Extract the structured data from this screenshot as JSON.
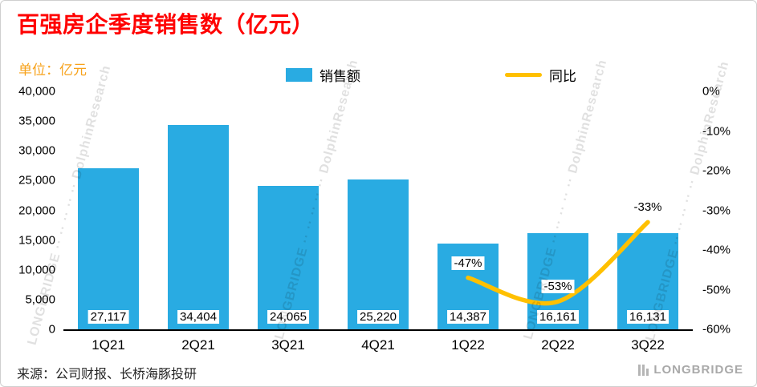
{
  "header": {
    "title": "百强房企季度销售数（亿元）",
    "unit": "单位：亿元"
  },
  "legend": {
    "sales": "销售额",
    "yoy": "同比"
  },
  "footer": {
    "source": "来源：公司财报、长桥海豚投研",
    "logo": "LONGBRIDGE"
  },
  "watermark": {
    "text": "LONGBRIDGE ·· ·· ·· ·· ·· DolphinResearch"
  },
  "colors": {
    "bar": "#29ABE2",
    "line": "#FFC000",
    "title": "#FF0000",
    "unit": "#F7A21B"
  },
  "chart_data": {
    "type": "bar",
    "title": "百强房企季度销售数（亿元）",
    "categories": [
      "1Q21",
      "2Q21",
      "3Q21",
      "4Q21",
      "1Q22",
      "2Q22",
      "3Q22"
    ],
    "series": [
      {
        "name": "销售额",
        "type": "bar",
        "axis": "left",
        "values": [
          27117,
          34404,
          24065,
          25220,
          14387,
          16161,
          16131
        ],
        "labels": [
          "27,117",
          "34,404",
          "24,065",
          "25,220",
          "14,387",
          "16,161",
          "16,131"
        ]
      },
      {
        "name": "同比",
        "type": "line",
        "axis": "right",
        "values": [
          null,
          null,
          null,
          null,
          -47,
          -53,
          -33
        ],
        "labels": [
          null,
          null,
          null,
          null,
          "-47%",
          "-53%",
          "-33%"
        ]
      }
    ],
    "left_axis": {
      "min": 0,
      "max": 40000,
      "step": 5000,
      "ticks": [
        "40,000",
        "35,000",
        "30,000",
        "25,000",
        "20,000",
        "15,000",
        "10,000",
        "5,000",
        "0"
      ]
    },
    "right_axis": {
      "min": -60,
      "max": 0,
      "step": 10,
      "ticks": [
        "0%",
        "-10%",
        "-20%",
        "-30%",
        "-40%",
        "-50%",
        "-60%"
      ]
    },
    "grid": false,
    "legend_position": "top"
  }
}
